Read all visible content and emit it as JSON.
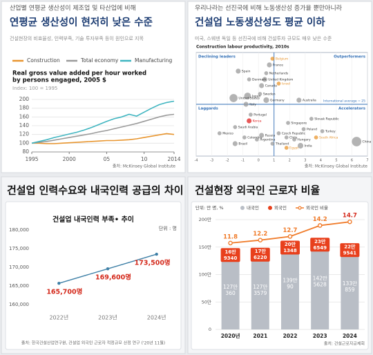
{
  "chart_data": [
    {
      "type": "line",
      "subtitle": "산업별 연평균 생산성이 제조업 및 타산업에 비해",
      "title": "연평균 생산성이 현저히 낮은 수준",
      "description": "건설현장의 비효율성, 인력부족, 기술 투자부족 등이 원인으로 지목",
      "chart_title": [
        "Real gross value added per hour worked",
        "by persons engaged, 2005 $"
      ],
      "note": "Index: 100 = 1995",
      "source": "출처: McKinsey Global Institute",
      "x": [
        1995,
        1996,
        1997,
        1998,
        1999,
        2000,
        2001,
        2002,
        2003,
        2004,
        2005,
        2006,
        2007,
        2008,
        2009,
        2010,
        2011,
        2012,
        2013,
        2014
      ],
      "series": [
        {
          "name": "Construction",
          "color": "#e8952e",
          "values": [
            100,
            100,
            99,
            99,
            100,
            101,
            102,
            103,
            104,
            105,
            106,
            106,
            107,
            108,
            110,
            113,
            116,
            119,
            122,
            120
          ]
        },
        {
          "name": "Total economy",
          "color": "#9a9a9a",
          "values": [
            100,
            102,
            104,
            107,
            110,
            113,
            116,
            119,
            122,
            126,
            129,
            133,
            137,
            141,
            145,
            150,
            155,
            160,
            164,
            166
          ]
        },
        {
          "name": "Manufacturing",
          "color": "#3fb5c0",
          "values": [
            100,
            104,
            108,
            113,
            117,
            121,
            125,
            130,
            136,
            143,
            150,
            156,
            160,
            166,
            162,
            171,
            180,
            188,
            193,
            196
          ]
        }
      ],
      "xlim": [
        1995,
        2014
      ],
      "xticks": [
        1995,
        2000,
        {
          "value": 2005,
          "label": "05"
        },
        {
          "value": 2010,
          "label": "10"
        },
        2014
      ],
      "ylim": [
        80,
        200
      ],
      "yticks": [
        80,
        100,
        120,
        140,
        160,
        180,
        200
      ],
      "grid": true,
      "legend": "top"
    },
    {
      "type": "scatter",
      "subtitle": "우리나라는 선진국에 비해 노동생산성 증가율 뿐만아니라",
      "title": "건설업 노동생산성도 평균 이하",
      "description": "미국, 스웨덴 독일 등 선진국에 비해 건설투자 규모도 매우 낮은 수준",
      "chart_title": "Construction labour productivity, 2010s",
      "quadrants": {
        "top_left": "Declining leaders",
        "top_right": "Outperformers",
        "bottom_left": "Laggards",
        "bottom_right": "Accelerators"
      },
      "average_label": "International average = 25",
      "xavg": 1,
      "yavg": 25,
      "labels": [
        "Belgium",
        "France",
        "Spain",
        "Netherlands",
        "United Kingdom",
        "Israel",
        "Denmark",
        "Canada",
        "Sweden",
        "Japan",
        "Germany",
        "United States",
        "Italy",
        "Australia",
        "Portugal",
        "Korea",
        "Singapore",
        "Slovak Republic",
        "Saudi Arabia",
        "Mexico",
        "Colombia",
        "Brazil",
        "Argentina",
        "Russia",
        "Czech Republic",
        "Chile",
        "Hungary",
        "Thailand",
        "Poland",
        "Turkey",
        "South Africa",
        "India",
        "Egypt",
        "China"
      ],
      "x": [
        0.9,
        0.7,
        -1.3,
        0.5,
        0.4,
        1.3,
        -0.6,
        0.2,
        0.1,
        -0.7,
        0.5,
        -1.6,
        -0.8,
        2.6,
        -0.5,
        -0.6,
        1.9,
        3.4,
        -1.5,
        -2.5,
        -0.9,
        -1.5,
        -0.1,
        0.2,
        1.3,
        1.8,
        2.3,
        0.9,
        2.9,
        4.1,
        3.7,
        2.7,
        1.8,
        6.3
      ],
      "values": [
        47,
        44,
        41,
        40,
        37,
        35,
        37,
        34,
        30,
        29,
        27,
        28,
        25,
        27,
        20,
        17,
        16,
        18,
        14,
        11,
        9,
        6,
        8,
        10,
        11,
        9,
        8,
        6,
        13,
        12,
        9,
        5,
        4,
        7
      ],
      "sizes": [
        1,
        2,
        2,
        1,
        2,
        1,
        1,
        2,
        1,
        5,
        3,
        8,
        2,
        2,
        1,
        2,
        1,
        1,
        1,
        1,
        1,
        2,
        1,
        2,
        1,
        1,
        1,
        1,
        1,
        1,
        1,
        3,
        1,
        12
      ],
      "colors": [
        "#e8952e",
        "#9a9a9a",
        "#9a9a9a",
        "#9a9a9a",
        "#9a9a9a",
        "#e8952e",
        "#9a9a9a",
        "#9a9a9a",
        "#9a9a9a",
        "#9a9a9a",
        "#9a9a9a",
        "#9a9a9a",
        "#9a9a9a",
        "#9a9a9a",
        "#9a9a9a",
        "#e02020",
        "#9a9a9a",
        "#9a9a9a",
        "#9a9a9a",
        "#9a9a9a",
        "#9a9a9a",
        "#9a9a9a",
        "#9a9a9a",
        "#9a9a9a",
        "#9a9a9a",
        "#9a9a9a",
        "#9a9a9a",
        "#9a9a9a",
        "#9a9a9a",
        "#9a9a9a",
        "#e8952e",
        "#9a9a9a",
        "#e8952e",
        "#9a9a9a"
      ],
      "xlim": [
        -4,
        7
      ],
      "xticks": [
        -4,
        -3,
        -2,
        -1,
        0,
        1,
        2,
        3,
        4,
        5,
        6,
        7
      ],
      "ylim": [
        0,
        50
      ],
      "grid": true,
      "source": "출처: McKinsey Global Institute"
    },
    {
      "type": "line",
      "title": "건설업 인력수요와 내국인력 공급의 차이",
      "chart_title": "건설업 내국인력 부족• 추이",
      "unit": "단위 : 명",
      "categories": [
        "2022년",
        "2023년",
        "2024년"
      ],
      "series": [
        {
          "color": "#3d7fa6",
          "values": [
            165700,
            169600,
            173500
          ],
          "value_labels": [
            "165,700명",
            "169,600명",
            "173,500명"
          ]
        }
      ],
      "ylim": [
        160000,
        180000
      ],
      "yticks": [
        {
          "value": 160000,
          "label": "160,000"
        },
        {
          "value": 165000,
          "label": "165,000"
        },
        {
          "value": 170000,
          "label": "170,000"
        },
        {
          "value": 175000,
          "label": "175,000"
        },
        {
          "value": 180000,
          "label": "180,000"
        }
      ],
      "grid": false,
      "source": "출처: 한국건설산업연구원, 건설업 외국인 근로자 적정규모 산정 연구 ('20년 11월)"
    },
    {
      "type": "bar",
      "stacked": true,
      "title": "건설현장 외국인 근로자 비율",
      "unit": "단위: 만 명, %",
      "categories": [
        "2020년",
        "2021",
        "2022",
        "2023",
        "2024"
      ],
      "series": [
        {
          "name": "내국인",
          "color": "#b9bec6",
          "values": [
            127.036,
            127.3579,
            139.009,
            142.5628,
            133.0859
          ],
          "value_labels": [
            [
              "127만",
              "360"
            ],
            [
              "127만",
              "3579"
            ],
            [
              "139만",
              "90"
            ],
            [
              "142만",
              "5628"
            ],
            [
              "133만",
              "859"
            ]
          ]
        },
        {
          "name": "외국인",
          "color": "#e8401c",
          "values": [
            16.934,
            17.622,
            20.1348,
            23.6549,
            22.9541
          ],
          "value_labels": [
            [
              "16만",
              "9340"
            ],
            [
              "17만",
              "6220"
            ],
            [
              "20만",
              "1348"
            ],
            [
              "23만",
              "6549"
            ],
            [
              "22만",
              "9541"
            ]
          ]
        },
        {
          "name": "외국인 비율",
          "type": "line",
          "axis": "y2",
          "color": "#f07a28",
          "values": [
            11.8,
            12.2,
            12.7,
            14.2,
            14.7
          ]
        }
      ],
      "ylim": [
        0,
        200
      ],
      "yticks": [
        0,
        {
          "value": 50,
          "label": "50만"
        },
        {
          "value": 100,
          "label": "100만"
        },
        {
          "value": 150,
          "label": "150만"
        },
        {
          "value": 200,
          "label": "200만"
        }
      ],
      "y2lim": [
        0,
        15
      ],
      "grid": true,
      "source": "출처: 건설근로자공제회"
    }
  ]
}
